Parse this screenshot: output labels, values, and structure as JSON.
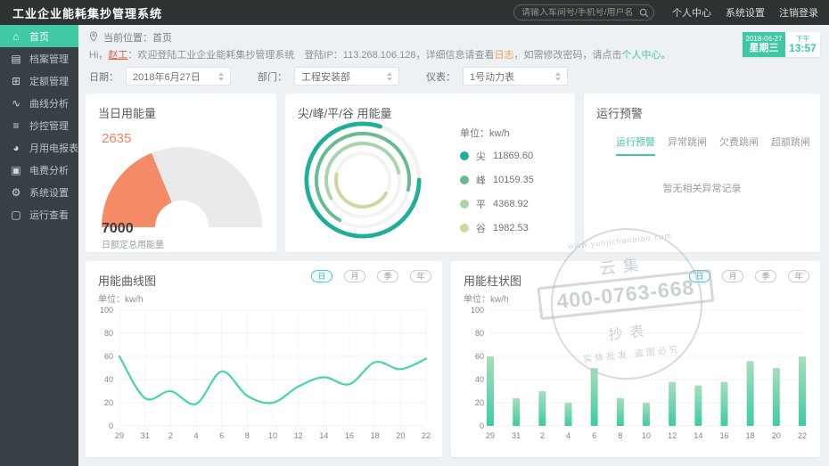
{
  "header": {
    "title": "工业企业能耗集抄管理系统",
    "search_placeholder": "请输入车间号/手机号/用户名",
    "links": [
      "个人中心",
      "系统设置",
      "注销登录"
    ]
  },
  "sidebar": {
    "items": [
      {
        "label": "首页",
        "icon": "home-icon",
        "active": true
      },
      {
        "label": "档案管理",
        "icon": "archive-icon",
        "active": false
      },
      {
        "label": "定额管理",
        "icon": "quota-icon",
        "active": false
      },
      {
        "label": "曲线分析",
        "icon": "curve-analysis-icon",
        "active": false
      },
      {
        "label": "抄控管理",
        "icon": "meter-control-icon",
        "active": false
      },
      {
        "label": "月用电报表",
        "icon": "report-pie-icon",
        "active": false
      },
      {
        "label": "电费分析",
        "icon": "fee-analysis-icon",
        "active": false
      },
      {
        "label": "系统设置",
        "icon": "gear-icon",
        "active": false
      },
      {
        "label": "运行查看",
        "icon": "operation-view-icon",
        "active": false
      }
    ]
  },
  "breadcrumb": {
    "label": "当前位置：首页"
  },
  "welcome": {
    "prefix": "Hi，",
    "user": "赵工",
    "mid": "：欢迎登陆工业企业能耗集抄管理系统　登陆IP：113.268.106.128，详细信息请查看",
    "log_link": "日志",
    "mid2": "，如需修改密码，请点击",
    "center_link": "个人中心",
    "suffix": "。"
  },
  "datetime": {
    "date": "2018-06-27",
    "weekday": "星期三",
    "period": "下午",
    "time": "13:57"
  },
  "filters": [
    {
      "label": "日期：",
      "value": "2018年6月27日"
    },
    {
      "label": "部门：",
      "value": "工程安装部"
    },
    {
      "label": "仪表：",
      "value": "1号动力表"
    }
  ],
  "panels": {
    "donut_unit_label": "单位：kw/h",
    "line_unit_label": "单位：kw/h",
    "bar_unit_label": "单位：kw/h",
    "period_buttons": [
      "日",
      "月",
      "季",
      "年"
    ],
    "period_active_index": 0
  },
  "warning": {
    "title": "运行预警",
    "tabs": [
      "运行预警",
      "异常跳闸",
      "欠费跳闸",
      "超额跳闸"
    ],
    "active_tab": 0,
    "empty_text": "暂无相关异常记录"
  },
  "watermark": {
    "site": "www.yunjichaobiao.com",
    "brand": "云集",
    "phone": "400-0763-668",
    "label": "抄表",
    "footer": "实体批发 盗图必究"
  },
  "chart_data": [
    {
      "type": "gauge",
      "title": "当日用能量",
      "value": 2635,
      "max": 7000,
      "max_label": "日额定总用能量",
      "color": "#f48a66",
      "track_color": "#e9eaea"
    },
    {
      "type": "pie",
      "variant": "concentric-rings",
      "title": "尖/峰/平/谷 用能量",
      "unit": "kw/h",
      "categories": [
        "尖",
        "峰",
        "平",
        "谷"
      ],
      "values": [
        11869.6,
        10159.35,
        4368.92,
        1982.53
      ],
      "value_display": [
        "11869.60",
        "10159.35",
        "4368.92",
        "1982.53"
      ],
      "colors": [
        "#1fae98",
        "#68bb90",
        "#a9d4aa",
        "#cdd99c"
      ],
      "legend_position": "right"
    },
    {
      "type": "line",
      "title": "用能曲线图",
      "unit": "kw/h",
      "categories": [
        "29",
        "31",
        "2",
        "4",
        "6",
        "8",
        "10",
        "12",
        "14",
        "16",
        "18",
        "20",
        "22"
      ],
      "values": [
        60,
        24,
        30,
        19,
        47,
        26,
        20,
        34,
        42,
        36,
        55,
        49,
        58
      ],
      "ylim": [
        0,
        100
      ],
      "yticks": [
        0,
        20,
        40,
        60,
        80,
        100
      ],
      "grid": true,
      "color": "#45d4ae"
    },
    {
      "type": "bar",
      "title": "用能柱状图",
      "unit": "kw/h",
      "categories": [
        "29",
        "31",
        "2",
        "4",
        "6",
        "8",
        "10",
        "12",
        "14",
        "16",
        "18",
        "20",
        "22"
      ],
      "values": [
        60,
        24,
        30,
        20,
        50,
        24,
        20,
        38,
        35,
        38,
        56,
        50,
        60
      ],
      "ylim": [
        0,
        100
      ],
      "yticks": [
        0,
        20,
        40,
        60,
        80,
        100
      ],
      "grid": true,
      "color_top": "#a5dfba",
      "color_bottom": "#3fcba4"
    }
  ]
}
